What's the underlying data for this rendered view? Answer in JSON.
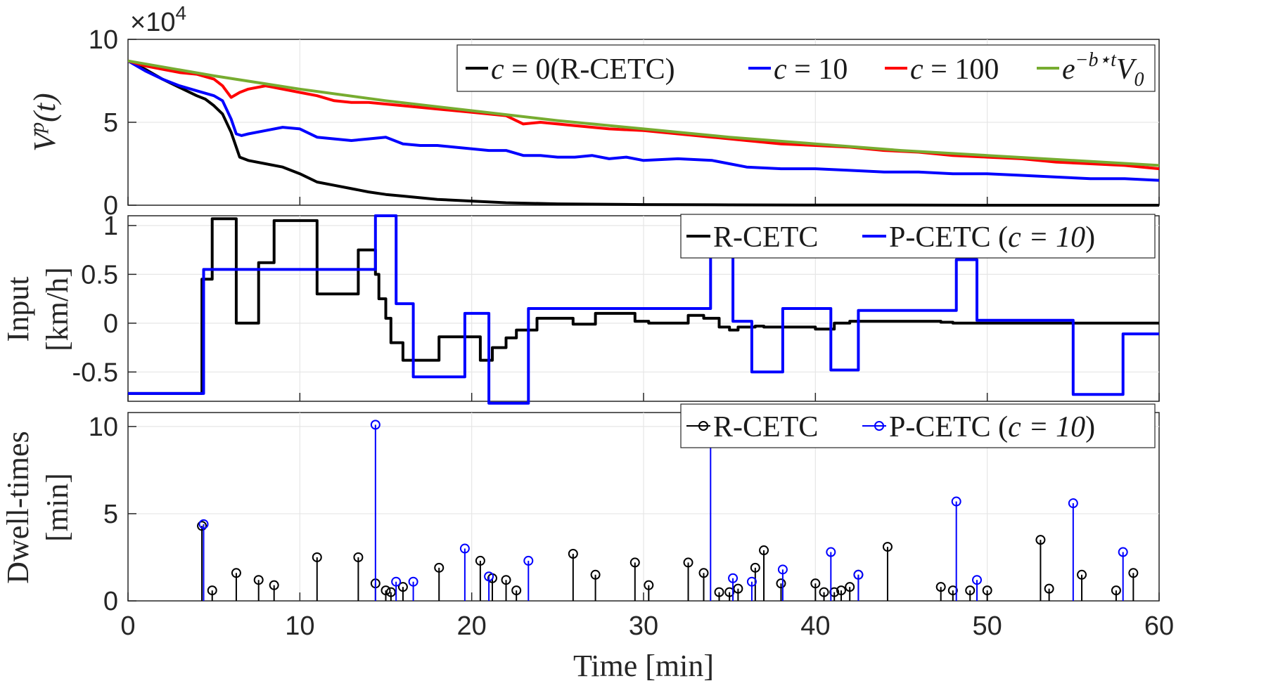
{
  "chart_data": [
    {
      "type": "line",
      "panel": "top",
      "ylabel": "V^p(t)",
      "ylabel_base": "V",
      "ylabel_sup": "p",
      "ylabel_tail": "(t)",
      "y_exponent": "×10",
      "y_exponent_power": "4",
      "xlim": [
        0,
        60
      ],
      "ylim": [
        0,
        10
      ],
      "yticks": [
        {
          "v": 0,
          "t": "0"
        },
        {
          "v": 5,
          "t": "5"
        },
        {
          "v": 10,
          "t": "10"
        }
      ],
      "grid": true,
      "legend_position": "top-right",
      "series": [
        {
          "name": "c = 0(R-CETC)",
          "color": "#000000",
          "x": [
            0,
            1,
            2,
            3,
            4,
            4.5,
            5,
            5.5,
            6,
            6.5,
            7,
            8,
            9,
            10,
            11,
            12,
            13,
            14,
            15,
            16,
            17,
            18,
            20,
            22,
            25,
            30,
            35,
            40,
            45,
            50,
            55,
            60
          ],
          "y": [
            8.7,
            8.2,
            7.6,
            7.1,
            6.6,
            6.4,
            6.0,
            5.5,
            4.4,
            2.9,
            2.7,
            2.5,
            2.3,
            1.9,
            1.4,
            1.2,
            1.0,
            0.8,
            0.65,
            0.55,
            0.45,
            0.35,
            0.25,
            0.15,
            0.08,
            0.04,
            0.02,
            0.01,
            0.01,
            0.0,
            0.0,
            0.0
          ]
        },
        {
          "name": "c = 10",
          "color": "#0000ff",
          "x": [
            0,
            1,
            2,
            3,
            4,
            5,
            5.5,
            6,
            6.3,
            6.6,
            7,
            8,
            9,
            10,
            11,
            12,
            13,
            14,
            15,
            16,
            17,
            18,
            19,
            20,
            21,
            22,
            23,
            24,
            25,
            26,
            27,
            28,
            29,
            30,
            32,
            34,
            35,
            36,
            38,
            40,
            42,
            44,
            46,
            48,
            50,
            52,
            54,
            56,
            58,
            60
          ],
          "y": [
            8.7,
            8.1,
            7.6,
            7.2,
            6.9,
            6.6,
            6.3,
            5.2,
            4.3,
            4.2,
            4.3,
            4.5,
            4.7,
            4.6,
            4.1,
            4.0,
            3.9,
            4.0,
            4.1,
            3.7,
            3.6,
            3.6,
            3.5,
            3.4,
            3.3,
            3.3,
            3.0,
            3.0,
            2.9,
            2.9,
            3.0,
            2.8,
            2.9,
            2.7,
            2.8,
            2.7,
            2.5,
            2.3,
            2.2,
            2.2,
            2.1,
            2.0,
            2.0,
            1.9,
            1.9,
            1.8,
            1.7,
            1.6,
            1.6,
            1.5
          ]
        },
        {
          "name": "c = 100",
          "color": "#ff0000",
          "x": [
            0,
            1,
            2,
            3,
            4,
            5,
            5.5,
            6,
            6.5,
            7,
            8,
            9,
            10,
            11,
            12,
            13,
            14,
            16,
            18,
            20,
            22,
            23,
            24,
            26,
            28,
            30,
            32,
            34,
            36,
            38,
            40,
            42,
            44,
            46,
            48,
            50,
            52,
            54,
            56,
            58,
            60
          ],
          "y": [
            8.7,
            8.4,
            8.2,
            8.0,
            7.9,
            7.6,
            7.2,
            6.5,
            6.8,
            7.0,
            7.2,
            7.0,
            6.8,
            6.6,
            6.3,
            6.2,
            6.2,
            6.0,
            5.8,
            5.6,
            5.4,
            4.9,
            5.0,
            4.8,
            4.6,
            4.5,
            4.3,
            4.1,
            3.9,
            3.7,
            3.6,
            3.5,
            3.3,
            3.2,
            3.0,
            2.9,
            2.8,
            2.6,
            2.5,
            2.4,
            2.2
          ]
        },
        {
          "name": "e^{-b*t}V_0",
          "color": "#77ac30",
          "x": [
            0,
            5,
            10,
            15,
            20,
            25,
            30,
            35,
            40,
            45,
            50,
            55,
            60
          ],
          "y": [
            8.7,
            7.8,
            7.0,
            6.3,
            5.7,
            5.1,
            4.6,
            4.1,
            3.7,
            3.3,
            3.0,
            2.7,
            2.4
          ]
        }
      ]
    },
    {
      "type": "line",
      "panel": "middle",
      "ylabel": "Input [km/h]",
      "ylabel_line1": "Input",
      "ylabel_line2": "[km/h]",
      "xlim": [
        0,
        60
      ],
      "ylim": [
        -0.8,
        1.1
      ],
      "yticks": [
        {
          "v": -0.5,
          "t": "-0.5"
        },
        {
          "v": 0,
          "t": "0"
        },
        {
          "v": 0.5,
          "t": "0.5"
        },
        {
          "v": 1,
          "t": "1"
        }
      ],
      "grid": true,
      "legend_position": "top-right",
      "step": true,
      "series": [
        {
          "name": "R-CETC",
          "color": "#000000",
          "x": [
            0,
            4.3,
            4.9,
            6.3,
            7.6,
            8.5,
            11,
            13.4,
            14.4,
            14.6,
            15,
            15.3,
            16,
            16.5,
            18.1,
            20.5,
            21.2,
            22,
            22.6,
            23.3,
            23.8,
            25.9,
            27.2,
            29.5,
            30.3,
            32.6,
            33.5,
            34.4,
            35,
            35.5,
            36.5,
            37,
            38,
            40,
            41.1,
            41.5,
            42,
            42.5,
            44.2,
            47.3,
            48,
            49,
            50,
            53.1,
            53.6,
            55,
            55.5,
            57.5,
            58.5,
            60
          ],
          "y": [
            -0.72,
            0.45,
            1.07,
            0.0,
            0.62,
            1.05,
            0.3,
            0.75,
            0.5,
            0.25,
            0.05,
            -0.2,
            -0.38,
            -0.38,
            -0.14,
            -0.38,
            -0.25,
            -0.15,
            -0.07,
            -0.07,
            0.05,
            -0.01,
            0.1,
            0.02,
            0.0,
            0.08,
            0.05,
            -0.04,
            -0.07,
            -0.04,
            -0.03,
            -0.04,
            -0.04,
            -0.06,
            0.0,
            0.0,
            0.02,
            0.02,
            0.02,
            0.01,
            0.0,
            0.0,
            0.0,
            0.0,
            0.0,
            0.0,
            0.0,
            0.0,
            0.0,
            0.0
          ]
        },
        {
          "name": "P-CETC (c = 10)",
          "color": "#0000ff",
          "x": [
            0,
            4.4,
            14.4,
            15.6,
            16.6,
            19.6,
            21.0,
            23.3,
            33.9,
            35.2,
            36.3,
            38.1,
            40.9,
            42.5,
            48.2,
            49.4,
            55.0,
            57.9,
            60
          ],
          "y": [
            -0.72,
            0.55,
            1.1,
            0.2,
            -0.55,
            0.1,
            -0.82,
            0.15,
            0.82,
            0.02,
            -0.5,
            0.15,
            -0.48,
            0.13,
            0.65,
            0.03,
            -0.73,
            -0.11,
            -0.11
          ]
        }
      ]
    },
    {
      "type": "stem",
      "panel": "bottom",
      "ylabel": "Dwell-times [min]",
      "ylabel_line1": "Dwell-times",
      "ylabel_line2": "[min]",
      "xlabel": "Time [min]",
      "xlim": [
        0,
        60
      ],
      "ylim": [
        0,
        10.8
      ],
      "xticks": [
        {
          "v": 0,
          "t": "0"
        },
        {
          "v": 10,
          "t": "10"
        },
        {
          "v": 20,
          "t": "20"
        },
        {
          "v": 30,
          "t": "30"
        },
        {
          "v": 40,
          "t": "40"
        },
        {
          "v": 50,
          "t": "50"
        },
        {
          "v": 60,
          "t": "60"
        }
      ],
      "yticks": [
        {
          "v": 0,
          "t": "0"
        },
        {
          "v": 5,
          "t": "5"
        },
        {
          "v": 10,
          "t": "10"
        }
      ],
      "grid": true,
      "legend_position": "top-right",
      "series": [
        {
          "name": "R-CETC",
          "color": "#000000",
          "x": [
            4.3,
            4.9,
            6.3,
            7.6,
            8.5,
            11.0,
            13.4,
            14.4,
            15.0,
            15.3,
            16.0,
            18.1,
            20.5,
            21.2,
            22.0,
            22.6,
            25.9,
            27.2,
            29.5,
            30.3,
            32.6,
            33.5,
            34.4,
            35.0,
            35.5,
            36.5,
            37.0,
            38.0,
            40.0,
            40.5,
            41.1,
            41.5,
            42.0,
            42.5,
            44.2,
            47.3,
            48.0,
            49.0,
            50.0,
            53.1,
            53.6,
            55.5,
            57.5,
            58.5
          ],
          "y": [
            4.3,
            0.6,
            1.6,
            1.2,
            0.9,
            2.5,
            2.5,
            1.0,
            0.6,
            0.5,
            0.8,
            1.9,
            2.3,
            1.3,
            1.2,
            0.6,
            2.7,
            1.5,
            2.2,
            0.9,
            2.2,
            1.6,
            0.5,
            0.5,
            0.7,
            1.9,
            2.9,
            1.0,
            1.0,
            0.5,
            0.5,
            0.6,
            0.8,
            1.5,
            3.1,
            0.8,
            0.6,
            0.6,
            0.6,
            3.5,
            0.7,
            1.5,
            0.6,
            1.6
          ]
        },
        {
          "name": "P-CETC (c = 10)",
          "color": "#0000ff",
          "x": [
            4.4,
            14.4,
            15.6,
            16.6,
            19.6,
            21.0,
            23.3,
            33.9,
            35.2,
            36.3,
            38.1,
            40.9,
            42.5,
            48.2,
            49.4,
            55.0,
            57.9
          ],
          "y": [
            4.4,
            10.1,
            1.1,
            1.1,
            3.0,
            1.4,
            2.3,
            10.6,
            1.3,
            1.1,
            1.8,
            2.8,
            1.5,
            5.7,
            1.2,
            5.6,
            2.8
          ]
        }
      ]
    }
  ],
  "legends": {
    "top": {
      "items": [
        {
          "type": "math",
          "series": 0,
          "pre": "c",
          "op": " = ",
          "val": "0(R-CETC)"
        },
        {
          "type": "math",
          "series": 1,
          "pre": "c",
          "op": " = ",
          "val": "10"
        },
        {
          "type": "math",
          "series": 2,
          "pre": "c",
          "op": " = ",
          "val": "100"
        },
        {
          "type": "exp",
          "series": 3,
          "base": "e",
          "sup": "−b⋆t",
          "tail": "V",
          "sub": "0"
        }
      ]
    },
    "middle": {
      "items": [
        {
          "series": 0,
          "label": "R-CETC"
        },
        {
          "series": 1,
          "label": "P-CETC (",
          "math": "c = 10",
          "close": ")"
        }
      ]
    },
    "bottom": {
      "items": [
        {
          "series": 0,
          "label": "R-CETC"
        },
        {
          "series": 1,
          "label": "P-CETC (",
          "math": "c = 10",
          "close": ")"
        }
      ]
    }
  }
}
